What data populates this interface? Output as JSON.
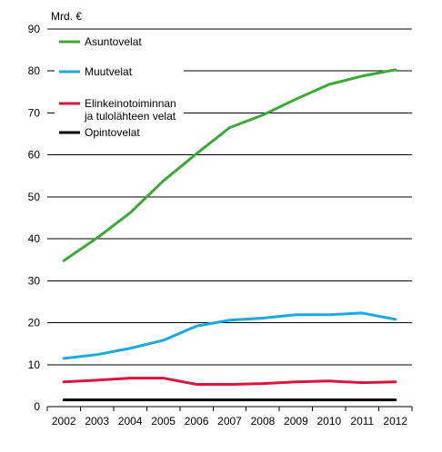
{
  "chart_data": {
    "type": "line",
    "ylabel": "Mrd. €",
    "ylim": [
      0,
      90
    ],
    "yticks": [
      0,
      10,
      20,
      30,
      40,
      50,
      60,
      70,
      80,
      90
    ],
    "categories": [
      "2002",
      "2003",
      "2004",
      "2005",
      "2006",
      "2007",
      "2008",
      "2009",
      "2010",
      "2011",
      "2012"
    ],
    "grid": true,
    "legend_position": "top-left",
    "series": [
      {
        "name": "Asuntovelat",
        "color": "#3aaa35",
        "values": [
          34.8,
          40.2,
          46.2,
          53.8,
          60.3,
          66.5,
          69.5,
          73.3,
          76.8,
          78.8,
          80.3
        ]
      },
      {
        "name": "Muutvelat",
        "color": "#19a9e1",
        "values": [
          11.5,
          12.4,
          13.9,
          15.8,
          19.2,
          20.6,
          21.1,
          21.9,
          21.9,
          22.3,
          20.8
        ]
      },
      {
        "name": "Elinkeinotoiminnan\nja tulolähteen velat",
        "color": "#dc143c",
        "values": [
          5.9,
          6.3,
          6.8,
          6.8,
          5.3,
          5.3,
          5.5,
          5.9,
          6.1,
          5.7,
          5.9
        ]
      },
      {
        "name": "Opintovelat",
        "color": "#000000",
        "values": [
          1.6,
          1.6,
          1.6,
          1.6,
          1.6,
          1.6,
          1.6,
          1.6,
          1.6,
          1.6,
          1.6
        ]
      }
    ]
  }
}
